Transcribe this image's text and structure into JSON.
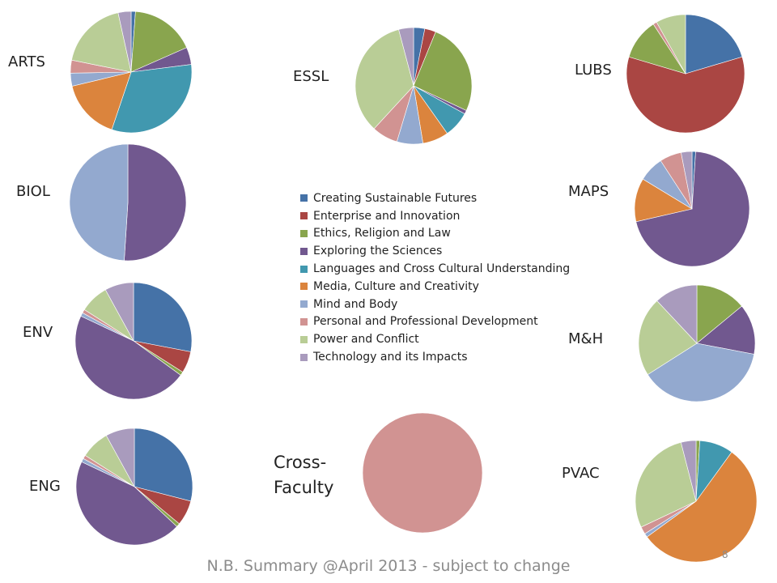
{
  "chart_data": {
    "type": "pie",
    "categories": [
      "Creating Sustainable Futures",
      "Enterprise and Innovation",
      "Ethics, Religion and Law",
      "Exploring the Sciences",
      "Languages and Cross Cultural Understanding",
      "Media, Culture and Creativity",
      "Mind and Body",
      "Personal and Professional Development",
      "Power and Conflict",
      "Technology and its Impacts"
    ],
    "colors": [
      "#4572a7",
      "#aa4643",
      "#89a54e",
      "#71588f",
      "#4198af",
      "#db843d",
      "#93a9cf",
      "#d19392",
      "#b9cd96",
      "#a99bbd"
    ],
    "legend_position": "center",
    "charts": [
      {
        "name": "ARTS",
        "values": [
          1,
          0,
          15,
          4,
          28,
          14,
          3,
          3,
          16,
          3
        ]
      },
      {
        "name": "ESSL",
        "values": [
          3,
          3,
          25,
          1,
          7,
          7,
          7,
          7,
          33,
          4
        ]
      },
      {
        "name": "LUBS",
        "values": [
          20,
          58,
          11,
          0,
          0,
          0,
          0,
          1,
          8,
          0
        ]
      },
      {
        "name": "BIOL",
        "values": [
          0,
          0,
          0,
          51,
          0,
          0,
          49,
          0,
          0,
          0
        ]
      },
      {
        "name": "MAPS",
        "values": [
          1,
          0,
          0,
          69,
          0,
          12,
          7,
          6,
          0,
          3
        ]
      },
      {
        "name": "ENV",
        "values": [
          28,
          6,
          1,
          47,
          0,
          0,
          1,
          1,
          8,
          8
        ]
      },
      {
        "name": "M&H",
        "values": [
          0,
          0,
          14,
          14,
          0,
          0,
          38,
          0,
          22,
          12
        ]
      },
      {
        "name": "ENG",
        "values": [
          29,
          7,
          1,
          45,
          0,
          0,
          1,
          1,
          8,
          8
        ]
      },
      {
        "name": "Cross-Faculty",
        "values": [
          0,
          0,
          0,
          0,
          0,
          0,
          0,
          100,
          0,
          0
        ]
      },
      {
        "name": "PVAC",
        "values": [
          0,
          0,
          1,
          0,
          9,
          55,
          1,
          2,
          28,
          4
        ]
      }
    ]
  },
  "footer": {
    "text": "N.B. Summary @April 2013 - subject to change"
  },
  "page_number": "8",
  "labels": {
    "arts": "ARTS",
    "essl": "ESSL",
    "lubs": "LUBS",
    "biol": "BIOL",
    "maps": "MAPS",
    "env": "ENV",
    "mh": "M&H",
    "eng": "ENG",
    "cross_1": "Cross-",
    "cross_2": "Faculty"
  }
}
